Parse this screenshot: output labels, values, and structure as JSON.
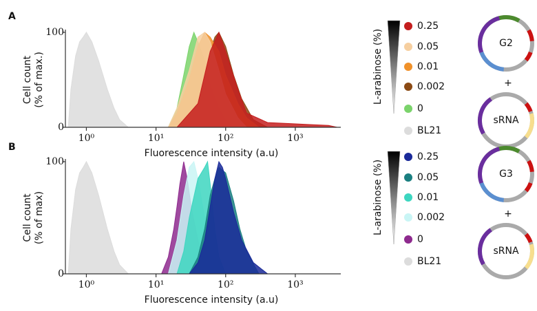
{
  "chart_data": [
    {
      "type": "area",
      "panel": "A",
      "ylabel": [
        "Cell count",
        "(% of max.)"
      ],
      "xlabel": "Fluorescence intensity (a.u)",
      "log_x": true,
      "xlim": [
        0.5,
        4500
      ],
      "ylim": [
        0,
        100
      ],
      "xticks": [
        {
          "value": 1,
          "label": "10⁰"
        },
        {
          "value": 10,
          "label": "10¹"
        },
        {
          "value": 100,
          "label": "10²"
        },
        {
          "value": 1000,
          "label": "10³"
        }
      ],
      "yticks": [
        0,
        100
      ],
      "legend_title": "L-arabinose (%)",
      "plasmid_labels": [
        "G2",
        "sRNA"
      ],
      "plasmid_join": "+",
      "series": [
        {
          "name": "0.25",
          "color": "#c41e1e",
          "x": [
            20,
            40,
            60,
            80,
            100,
            150,
            200,
            400,
            800,
            1500,
            3000,
            4000
          ],
          "values": [
            0,
            25,
            80,
            100,
            80,
            40,
            15,
            5,
            4,
            3,
            2,
            0
          ]
        },
        {
          "name": "0.05",
          "color": "#f6cfa0",
          "x": [
            15,
            20,
            30,
            40,
            50,
            60,
            80,
            100,
            150,
            200
          ],
          "values": [
            0,
            20,
            60,
            95,
            100,
            90,
            60,
            35,
            10,
            0
          ]
        },
        {
          "name": "0.01",
          "color": "#f0912a",
          "x": [
            15,
            20,
            30,
            40,
            50,
            60,
            80,
            100,
            150,
            200,
            300
          ],
          "values": [
            0,
            15,
            50,
            85,
            100,
            95,
            80,
            55,
            25,
            10,
            0
          ]
        },
        {
          "name": "0.002",
          "color": "#8b4a14",
          "x": [
            20,
            30,
            40,
            50,
            60,
            70,
            80,
            100,
            130,
            170,
            250,
            400
          ],
          "values": [
            0,
            10,
            30,
            55,
            80,
            95,
            100,
            85,
            55,
            30,
            8,
            0
          ]
        },
        {
          "name": "0",
          "color": "#7bd36b",
          "x": [
            15,
            20,
            25,
            30,
            35,
            40,
            50,
            60,
            80,
            100,
            130
          ],
          "values": [
            0,
            20,
            55,
            85,
            100,
            90,
            70,
            45,
            20,
            8,
            0
          ]
        },
        {
          "name": "BL21",
          "color": "#dcdcdc",
          "x": [
            0.55,
            0.6,
            0.7,
            0.8,
            0.9,
            1.0,
            1.2,
            1.5,
            2,
            2.5,
            3,
            4
          ],
          "values": [
            0,
            40,
            75,
            90,
            95,
            100,
            90,
            70,
            40,
            20,
            8,
            0
          ]
        }
      ]
    },
    {
      "type": "area",
      "panel": "B",
      "ylabel": [
        "Cell count",
        "(% of max)"
      ],
      "xlabel": "Fluorescence intensity (a.u)",
      "log_x": true,
      "xlim": [
        0.5,
        4500
      ],
      "ylim": [
        0,
        100
      ],
      "xticks": [
        {
          "value": 1,
          "label": "10⁰"
        },
        {
          "value": 10,
          "label": "10¹"
        },
        {
          "value": 100,
          "label": "10²"
        },
        {
          "value": 1000,
          "label": "10³"
        }
      ],
      "yticks": [
        0,
        100
      ],
      "legend_title": "L-arabinose (%)",
      "plasmid_labels": [
        "G3",
        "sRNA"
      ],
      "plasmid_join": "+",
      "series": [
        {
          "name": "0.25",
          "color": "#1a2a99",
          "x": [
            30,
            40,
            50,
            60,
            70,
            80,
            90,
            100,
            130,
            170,
            250,
            400
          ],
          "values": [
            0,
            10,
            30,
            60,
            85,
            100,
            95,
            85,
            55,
            30,
            10,
            0
          ]
        },
        {
          "name": "0.05",
          "color": "#1a7f80",
          "x": [
            30,
            40,
            50,
            60,
            70,
            80,
            100,
            130,
            160,
            200,
            300
          ],
          "values": [
            0,
            15,
            40,
            70,
            85,
            95,
            90,
            65,
            40,
            20,
            0
          ]
        },
        {
          "name": "0.01",
          "color": "#3dd6c0",
          "x": [
            20,
            25,
            30,
            40,
            50,
            55,
            60,
            70,
            80,
            100
          ],
          "values": [
            0,
            20,
            50,
            85,
            95,
            100,
            80,
            40,
            15,
            0
          ]
        },
        {
          "name": "0.002",
          "color": "#c9f5f5",
          "x": [
            15,
            20,
            25,
            30,
            35,
            40,
            50,
            60,
            80
          ],
          "values": [
            0,
            30,
            70,
            95,
            100,
            85,
            50,
            20,
            0
          ]
        },
        {
          "name": "0",
          "color": "#8e2a8e",
          "x": [
            12,
            15,
            18,
            20,
            22,
            25,
            28,
            32,
            40,
            50,
            60
          ],
          "values": [
            0,
            15,
            40,
            60,
            80,
            100,
            85,
            60,
            30,
            10,
            0
          ]
        },
        {
          "name": "BL21",
          "color": "#dcdcdc",
          "x": [
            0.55,
            0.6,
            0.7,
            0.8,
            0.9,
            1.0,
            1.2,
            1.5,
            2,
            2.5,
            3,
            4
          ],
          "values": [
            0,
            40,
            75,
            90,
            95,
            100,
            90,
            70,
            40,
            20,
            8,
            0
          ]
        }
      ]
    }
  ]
}
